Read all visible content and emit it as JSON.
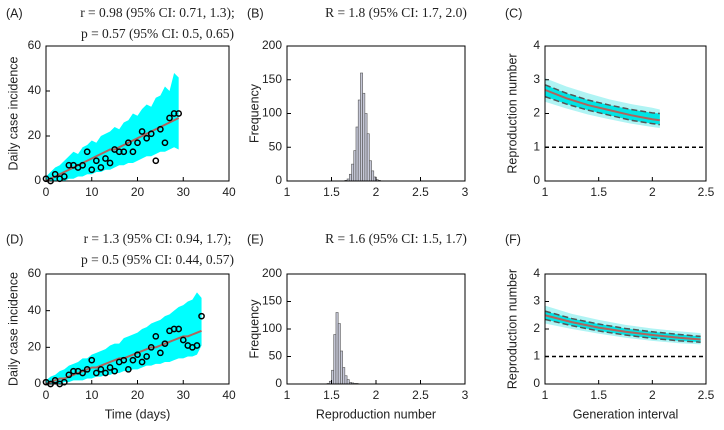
{
  "chart_data": [
    {
      "type": "line",
      "panel": "(A)",
      "title": [
        "r = 0.98 (95% CI: 0.71, 1.3);",
        "p = 0.57 (95% CI: 0.5, 0.65)"
      ],
      "ylabel": "Daily case incidence",
      "xlim": [
        0,
        40
      ],
      "ylim": [
        0,
        60
      ],
      "xticks": [
        0,
        10,
        20,
        30,
        40
      ],
      "yticks": [
        0,
        20,
        40,
        60
      ],
      "x": [
        0,
        1,
        2,
        3,
        4,
        5,
        6,
        7,
        8,
        9,
        10,
        11,
        12,
        13,
        14,
        15,
        16,
        17,
        18,
        19,
        20,
        21,
        22,
        23,
        24,
        25,
        26,
        27,
        28,
        29
      ],
      "band": {
        "color": "#00ffff",
        "upper": [
          2,
          4,
          6,
          7,
          9,
          11,
          13,
          12,
          15,
          16,
          18,
          17,
          20,
          21,
          22,
          24,
          23,
          26,
          27,
          30,
          29,
          32,
          34,
          33,
          37,
          38,
          42,
          40,
          48,
          46
        ],
        "lower": [
          0,
          0,
          0,
          0,
          0,
          1,
          1,
          2,
          2,
          3,
          3,
          4,
          4,
          5,
          5,
          6,
          7,
          7,
          8,
          8,
          9,
          10,
          11,
          11,
          12,
          13,
          13,
          14,
          15,
          14
        ]
      },
      "line": {
        "color": "#b0645c",
        "values": [
          0,
          1,
          2,
          3,
          4,
          5,
          6,
          7,
          8,
          9,
          10,
          11,
          12,
          13,
          14,
          14,
          15,
          16,
          17,
          18,
          19,
          20,
          21,
          22,
          23,
          24,
          25,
          26,
          27,
          28
        ]
      },
      "points": {
        "color": "#000000",
        "values": [
          1,
          0,
          3,
          1,
          2,
          7,
          7,
          6,
          7,
          13,
          5,
          9,
          6,
          10,
          8,
          14,
          13,
          13,
          17,
          13,
          17,
          22,
          19,
          21,
          9,
          23,
          17,
          28,
          30,
          30
        ]
      }
    },
    {
      "type": "histogram",
      "panel": "(B)",
      "title": [
        "R = 1.8 (95% CI: 1.7, 2.0)"
      ],
      "ylabel": "Frequency",
      "xlim": [
        1,
        3
      ],
      "ylim": [
        0,
        200
      ],
      "xticks": [
        1,
        1.5,
        2,
        2.5,
        3
      ],
      "yticks": [
        0,
        50,
        100,
        150,
        200
      ],
      "color": "#c6c8d8",
      "edgecolor": "#555555",
      "bins": [
        1.65,
        1.675,
        1.7,
        1.725,
        1.75,
        1.775,
        1.8,
        1.825,
        1.85,
        1.875,
        1.9,
        1.925,
        1.95,
        1.975,
        2,
        2.025,
        2.05
      ],
      "counts": [
        1,
        3,
        10,
        25,
        45,
        80,
        120,
        160,
        130,
        100,
        70,
        30,
        15,
        6,
        2,
        1
      ]
    },
    {
      "type": "line",
      "panel": "(C)",
      "ylabel": "Reproduction number",
      "xlim": [
        1,
        2.5
      ],
      "ylim": [
        0,
        4
      ],
      "xticks": [
        1,
        1.5,
        2,
        2.5
      ],
      "yticks": [
        0,
        1,
        2,
        3,
        4
      ],
      "x": [
        1,
        1.2,
        1.4,
        1.6,
        1.8,
        2.0,
        2.07
      ],
      "band": {
        "color": "#b0f4f4",
        "upper": [
          3.05,
          2.8,
          2.6,
          2.42,
          2.28,
          2.17,
          2.12
        ],
        "lower": [
          2.35,
          2.15,
          1.97,
          1.83,
          1.7,
          1.6,
          1.57
        ]
      },
      "dashed": {
        "color": "#555555",
        "fill": "#00e5e5",
        "upper": [
          2.85,
          2.6,
          2.4,
          2.25,
          2.12,
          2.02,
          2.0
        ],
        "lower": [
          2.5,
          2.28,
          2.1,
          1.95,
          1.8,
          1.7,
          1.67
        ]
      },
      "line": {
        "color": "#b0645c",
        "values": [
          2.7,
          2.45,
          2.25,
          2.1,
          1.95,
          1.83,
          1.8
        ]
      },
      "reference": 1
    },
    {
      "type": "line",
      "panel": "(D)",
      "title": [
        "r = 1.3 (95% CI: 0.94, 1.7);",
        "p = 0.5 (95% CI: 0.44, 0.57)"
      ],
      "ylabel": "Daily case incidence",
      "xlabel": "Time (days)",
      "xlim": [
        0,
        40
      ],
      "ylim": [
        0,
        60
      ],
      "xticks": [
        0,
        10,
        20,
        30,
        40
      ],
      "yticks": [
        0,
        20,
        40,
        60
      ],
      "x": [
        0,
        1,
        2,
        3,
        4,
        5,
        6,
        7,
        8,
        9,
        10,
        11,
        12,
        13,
        14,
        15,
        16,
        17,
        18,
        19,
        20,
        21,
        22,
        23,
        24,
        25,
        26,
        27,
        28,
        29,
        30,
        31,
        32,
        33,
        34
      ],
      "band": {
        "color": "#00ffff",
        "upper": [
          2,
          4,
          5,
          7,
          8,
          10,
          11,
          12,
          14,
          14,
          16,
          17,
          18,
          19,
          21,
          22,
          22,
          25,
          26,
          27,
          28,
          30,
          31,
          33,
          34,
          35,
          37,
          38,
          40,
          42,
          43,
          45,
          46,
          50,
          47
        ],
        "lower": [
          0,
          0,
          0,
          0,
          1,
          1,
          2,
          2,
          2,
          3,
          3,
          4,
          4,
          5,
          5,
          6,
          6,
          7,
          7,
          8,
          8,
          9,
          10,
          10,
          11,
          11,
          12,
          12,
          13,
          14,
          14,
          15,
          15,
          16,
          21
        ]
      },
      "line": {
        "color": "#b0645c",
        "values": [
          0,
          1,
          2,
          3,
          3,
          4,
          5,
          6,
          7,
          8,
          9,
          9,
          10,
          11,
          12,
          13,
          14,
          14,
          15,
          16,
          17,
          18,
          19,
          20,
          20,
          21,
          22,
          23,
          24,
          25,
          26,
          26,
          27,
          28,
          29
        ]
      },
      "points": {
        "color": "#000000",
        "values": [
          1,
          0,
          2,
          0,
          1,
          5,
          7,
          7,
          6,
          8,
          13,
          6,
          8,
          6,
          9,
          7,
          12,
          13,
          8,
          13,
          16,
          12,
          15,
          20,
          26,
          17,
          22,
          29,
          30,
          30,
          24,
          21,
          20,
          21,
          37
        ]
      }
    },
    {
      "type": "histogram",
      "panel": "(E)",
      "title": [
        "R = 1.6 (95% CI: 1.5, 1.7)"
      ],
      "ylabel": "Frequency",
      "xlabel": "Reproduction number",
      "xlim": [
        1,
        3
      ],
      "ylim": [
        0,
        200
      ],
      "xticks": [
        1,
        1.5,
        2,
        2.5,
        3
      ],
      "yticks": [
        0,
        50,
        100,
        150,
        200
      ],
      "color": "#c6c8d8",
      "edgecolor": "#555555",
      "bins": [
        1.45,
        1.475,
        1.5,
        1.525,
        1.55,
        1.575,
        1.6,
        1.625,
        1.65,
        1.675,
        1.7,
        1.725,
        1.75,
        1.775,
        1.8
      ],
      "counts": [
        1,
        5,
        25,
        90,
        130,
        110,
        60,
        30,
        15,
        8,
        3,
        2,
        1,
        1
      ]
    },
    {
      "type": "line",
      "panel": "(F)",
      "ylabel": "Reproduction number",
      "xlabel": "Generation interval",
      "xlim": [
        1,
        2.5
      ],
      "ylim": [
        0,
        4
      ],
      "xticks": [
        1,
        1.5,
        2,
        2.5
      ],
      "yticks": [
        0,
        1,
        2,
        3,
        4
      ],
      "x": [
        1,
        1.25,
        1.5,
        1.75,
        2.0,
        2.25,
        2.45
      ],
      "band": {
        "color": "#b0f4f4",
        "upper": [
          2.85,
          2.55,
          2.33,
          2.15,
          2.02,
          1.92,
          1.85
        ],
        "lower": [
          2.2,
          2.0,
          1.83,
          1.68,
          1.57,
          1.48,
          1.44
        ]
      },
      "dashed": {
        "color": "#555555",
        "fill": "#00e5e5",
        "upper": [
          2.65,
          2.38,
          2.18,
          2.02,
          1.9,
          1.8,
          1.73
        ],
        "lower": [
          2.35,
          2.12,
          1.93,
          1.78,
          1.66,
          1.57,
          1.52
        ]
      },
      "line": {
        "color": "#b0645c",
        "values": [
          2.5,
          2.25,
          2.05,
          1.9,
          1.78,
          1.68,
          1.62
        ]
      },
      "reference": 1
    }
  ]
}
